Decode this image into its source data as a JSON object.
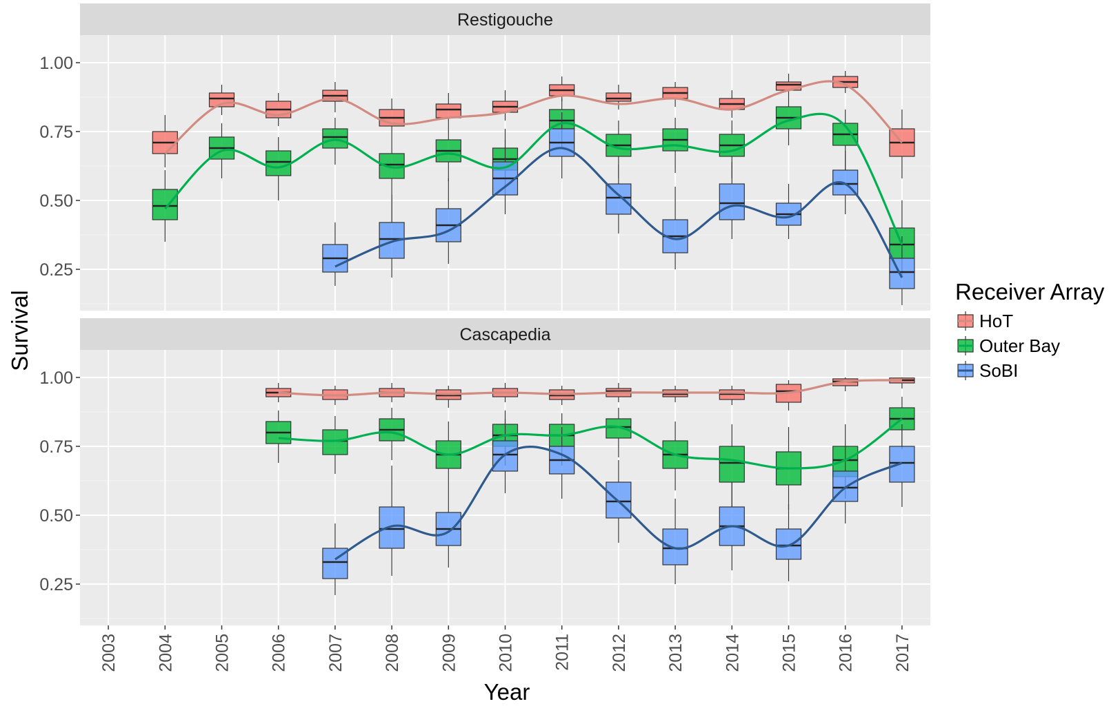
{
  "chart_data": {
    "type": "box",
    "xlabel": "Year",
    "ylabel": "Survival",
    "categories": [
      "2003",
      "2004",
      "2005",
      "2006",
      "2007",
      "2008",
      "2009",
      "2010",
      "2011",
      "2012",
      "2013",
      "2014",
      "2015",
      "2016",
      "2017"
    ],
    "ylim": [
      0.1,
      1.1
    ],
    "yticks": [
      0.25,
      0.5,
      0.75,
      1.0
    ],
    "ytick_labels": [
      "0.25",
      "0.50",
      "0.75",
      "1.00"
    ],
    "grid": true,
    "legend": {
      "title": "Receiver Array",
      "placement": "right",
      "entries": [
        "HoT",
        "Outer Bay",
        "SoBI"
      ]
    },
    "series_colors": {
      "HoT": {
        "fill": "#f8766d",
        "line": "#d28b80"
      },
      "Outer Bay": {
        "fill": "#00ba38",
        "line": "#00b050"
      },
      "SoBI": {
        "fill": "#619cff",
        "line": "#2f5a8e"
      }
    },
    "panels": [
      {
        "title": "Restigouche",
        "series": [
          {
            "name": "HoT",
            "boxes": [
              {
                "x": "2004",
                "q1": 0.67,
                "median": 0.71,
                "q3": 0.75,
                "lo": 0.62,
                "hi": 0.81
              },
              {
                "x": "2005",
                "q1": 0.84,
                "median": 0.87,
                "q3": 0.89,
                "lo": 0.81,
                "hi": 0.92
              },
              {
                "x": "2006",
                "q1": 0.8,
                "median": 0.83,
                "q3": 0.86,
                "lo": 0.77,
                "hi": 0.89
              },
              {
                "x": "2007",
                "q1": 0.86,
                "median": 0.88,
                "q3": 0.9,
                "lo": 0.82,
                "hi": 0.93
              },
              {
                "x": "2008",
                "q1": 0.77,
                "median": 0.8,
                "q3": 0.83,
                "lo": 0.73,
                "hi": 0.87
              },
              {
                "x": "2009",
                "q1": 0.8,
                "median": 0.83,
                "q3": 0.85,
                "lo": 0.77,
                "hi": 0.89
              },
              {
                "x": "2010",
                "q1": 0.82,
                "median": 0.84,
                "q3": 0.86,
                "lo": 0.79,
                "hi": 0.9
              },
              {
                "x": "2011",
                "q1": 0.88,
                "median": 0.9,
                "q3": 0.92,
                "lo": 0.86,
                "hi": 0.95
              },
              {
                "x": "2012",
                "q1": 0.86,
                "median": 0.87,
                "q3": 0.89,
                "lo": 0.83,
                "hi": 0.92
              },
              {
                "x": "2013",
                "q1": 0.87,
                "median": 0.89,
                "q3": 0.91,
                "lo": 0.84,
                "hi": 0.93
              },
              {
                "x": "2014",
                "q1": 0.83,
                "median": 0.85,
                "q3": 0.87,
                "lo": 0.8,
                "hi": 0.9
              },
              {
                "x": "2015",
                "q1": 0.9,
                "median": 0.92,
                "q3": 0.93,
                "lo": 0.88,
                "hi": 0.96
              },
              {
                "x": "2016",
                "q1": 0.91,
                "median": 0.93,
                "q3": 0.95,
                "lo": 0.89,
                "hi": 0.97
              },
              {
                "x": "2017",
                "q1": 0.66,
                "median": 0.71,
                "q3": 0.76,
                "lo": 0.58,
                "hi": 0.83
              }
            ],
            "smooth": [
              0.67,
              0.85,
              0.81,
              0.87,
              0.78,
              0.8,
              0.82,
              0.88,
              0.85,
              0.87,
              0.83,
              0.9,
              0.92,
              0.71
            ]
          },
          {
            "name": "Outer Bay",
            "boxes": [
              {
                "x": "2004",
                "q1": 0.43,
                "median": 0.48,
                "q3": 0.54,
                "lo": 0.35,
                "hi": 0.61
              },
              {
                "x": "2005",
                "q1": 0.65,
                "median": 0.69,
                "q3": 0.73,
                "lo": 0.58,
                "hi": 0.78
              },
              {
                "x": "2006",
                "q1": 0.59,
                "median": 0.64,
                "q3": 0.68,
                "lo": 0.5,
                "hi": 0.73
              },
              {
                "x": "2007",
                "q1": 0.69,
                "median": 0.73,
                "q3": 0.76,
                "lo": 0.63,
                "hi": 0.8
              },
              {
                "x": "2008",
                "q1": 0.58,
                "median": 0.63,
                "q3": 0.67,
                "lo": 0.42,
                "hi": 0.73
              },
              {
                "x": "2009",
                "q1": 0.64,
                "median": 0.68,
                "q3": 0.72,
                "lo": 0.57,
                "hi": 0.77
              },
              {
                "x": "2010",
                "q1": 0.61,
                "median": 0.65,
                "q3": 0.69,
                "lo": 0.52,
                "hi": 0.76
              },
              {
                "x": "2011",
                "q1": 0.76,
                "median": 0.79,
                "q3": 0.83,
                "lo": 0.69,
                "hi": 0.87
              },
              {
                "x": "2012",
                "q1": 0.66,
                "median": 0.7,
                "q3": 0.74,
                "lo": 0.58,
                "hi": 0.79
              },
              {
                "x": "2013",
                "q1": 0.68,
                "median": 0.72,
                "q3": 0.76,
                "lo": 0.6,
                "hi": 0.8
              },
              {
                "x": "2014",
                "q1": 0.66,
                "median": 0.7,
                "q3": 0.74,
                "lo": 0.58,
                "hi": 0.79
              },
              {
                "x": "2015",
                "q1": 0.76,
                "median": 0.8,
                "q3": 0.84,
                "lo": 0.7,
                "hi": 0.88
              },
              {
                "x": "2016",
                "q1": 0.7,
                "median": 0.74,
                "q3": 0.78,
                "lo": 0.61,
                "hi": 0.83
              },
              {
                "x": "2017",
                "q1": 0.29,
                "median": 0.34,
                "q3": 0.4,
                "lo": 0.22,
                "hi": 0.5
              }
            ],
            "smooth": [
              0.47,
              0.68,
              0.62,
              0.72,
              0.62,
              0.67,
              0.62,
              0.78,
              0.69,
              0.7,
              0.68,
              0.79,
              0.77,
              0.34
            ]
          },
          {
            "name": "SoBI",
            "boxes": [
              {
                "x": "2007",
                "q1": 0.24,
                "median": 0.29,
                "q3": 0.34,
                "lo": 0.19,
                "hi": 0.42
              },
              {
                "x": "2008",
                "q1": 0.29,
                "median": 0.36,
                "q3": 0.42,
                "lo": 0.22,
                "hi": 0.52
              },
              {
                "x": "2009",
                "q1": 0.35,
                "median": 0.41,
                "q3": 0.47,
                "lo": 0.27,
                "hi": 0.58
              },
              {
                "x": "2010",
                "q1": 0.52,
                "median": 0.58,
                "q3": 0.64,
                "lo": 0.45,
                "hi": 0.72
              },
              {
                "x": "2011",
                "q1": 0.66,
                "median": 0.71,
                "q3": 0.76,
                "lo": 0.58,
                "hi": 0.82
              },
              {
                "x": "2012",
                "q1": 0.45,
                "median": 0.51,
                "q3": 0.56,
                "lo": 0.38,
                "hi": 0.63
              },
              {
                "x": "2013",
                "q1": 0.31,
                "median": 0.37,
                "q3": 0.43,
                "lo": 0.25,
                "hi": 0.55
              },
              {
                "x": "2014",
                "q1": 0.43,
                "median": 0.49,
                "q3": 0.56,
                "lo": 0.36,
                "hi": 0.64
              },
              {
                "x": "2015",
                "q1": 0.41,
                "median": 0.45,
                "q3": 0.49,
                "lo": 0.36,
                "hi": 0.56
              },
              {
                "x": "2016",
                "q1": 0.52,
                "median": 0.56,
                "q3": 0.61,
                "lo": 0.45,
                "hi": 0.68
              },
              {
                "x": "2017",
                "q1": 0.18,
                "median": 0.24,
                "q3": 0.29,
                "lo": 0.12,
                "hi": 0.37
              }
            ],
            "smooth": [
              0.26,
              0.35,
              0.39,
              0.55,
              0.69,
              0.52,
              0.36,
              0.48,
              0.44,
              0.56,
              0.22
            ]
          }
        ]
      },
      {
        "title": "Cascapedia",
        "series": [
          {
            "name": "HoT",
            "boxes": [
              {
                "x": "2006",
                "q1": 0.93,
                "median": 0.945,
                "q3": 0.96,
                "lo": 0.91,
                "hi": 0.98
              },
              {
                "x": "2007",
                "q1": 0.92,
                "median": 0.935,
                "q3": 0.955,
                "lo": 0.9,
                "hi": 0.97
              },
              {
                "x": "2008",
                "q1": 0.93,
                "median": 0.945,
                "q3": 0.96,
                "lo": 0.91,
                "hi": 0.98
              },
              {
                "x": "2009",
                "q1": 0.92,
                "median": 0.935,
                "q3": 0.955,
                "lo": 0.89,
                "hi": 0.97
              },
              {
                "x": "2010",
                "q1": 0.93,
                "median": 0.945,
                "q3": 0.96,
                "lo": 0.91,
                "hi": 0.98
              },
              {
                "x": "2011",
                "q1": 0.92,
                "median": 0.935,
                "q3": 0.955,
                "lo": 0.9,
                "hi": 0.97
              },
              {
                "x": "2012",
                "q1": 0.93,
                "median": 0.95,
                "q3": 0.96,
                "lo": 0.91,
                "hi": 0.98
              },
              {
                "x": "2013",
                "q1": 0.93,
                "median": 0.94,
                "q3": 0.955,
                "lo": 0.91,
                "hi": 0.97
              },
              {
                "x": "2014",
                "q1": 0.92,
                "median": 0.94,
                "q3": 0.955,
                "lo": 0.9,
                "hi": 0.97
              },
              {
                "x": "2015",
                "q1": 0.91,
                "median": 0.95,
                "q3": 0.975,
                "lo": 0.88,
                "hi": 0.99
              },
              {
                "x": "2016",
                "q1": 0.97,
                "median": 0.985,
                "q3": 0.995,
                "lo": 0.95,
                "hi": 1.0
              },
              {
                "x": "2017",
                "q1": 0.98,
                "median": 0.99,
                "q3": 0.998,
                "lo": 0.96,
                "hi": 1.0
              }
            ],
            "smooth": [
              0.945,
              0.935,
              0.945,
              0.94,
              0.945,
              0.94,
              0.945,
              0.945,
              0.945,
              0.945,
              0.985,
              0.99
            ]
          },
          {
            "name": "Outer Bay",
            "boxes": [
              {
                "x": "2006",
                "q1": 0.76,
                "median": 0.8,
                "q3": 0.84,
                "lo": 0.69,
                "hi": 0.88
              },
              {
                "x": "2007",
                "q1": 0.72,
                "median": 0.77,
                "q3": 0.81,
                "lo": 0.65,
                "hi": 0.86
              },
              {
                "x": "2008",
                "q1": 0.77,
                "median": 0.81,
                "q3": 0.85,
                "lo": 0.7,
                "hi": 0.89
              },
              {
                "x": "2009",
                "q1": 0.67,
                "median": 0.72,
                "q3": 0.77,
                "lo": 0.6,
                "hi": 0.84
              },
              {
                "x": "2010",
                "q1": 0.75,
                "median": 0.79,
                "q3": 0.83,
                "lo": 0.68,
                "hi": 0.88
              },
              {
                "x": "2011",
                "q1": 0.75,
                "median": 0.79,
                "q3": 0.83,
                "lo": 0.68,
                "hi": 0.87
              },
              {
                "x": "2012",
                "q1": 0.78,
                "median": 0.82,
                "q3": 0.85,
                "lo": 0.71,
                "hi": 0.89
              },
              {
                "x": "2013",
                "q1": 0.67,
                "median": 0.72,
                "q3": 0.77,
                "lo": 0.59,
                "hi": 0.84
              },
              {
                "x": "2014",
                "q1": 0.62,
                "median": 0.69,
                "q3": 0.75,
                "lo": 0.53,
                "hi": 0.83
              },
              {
                "x": "2015",
                "q1": 0.61,
                "median": 0.67,
                "q3": 0.73,
                "lo": 0.52,
                "hi": 0.82
              },
              {
                "x": "2016",
                "q1": 0.64,
                "median": 0.7,
                "q3": 0.75,
                "lo": 0.56,
                "hi": 0.83
              },
              {
                "x": "2017",
                "q1": 0.81,
                "median": 0.85,
                "q3": 0.89,
                "lo": 0.74,
                "hi": 0.93
              }
            ],
            "smooth": [
              0.78,
              0.77,
              0.8,
              0.72,
              0.79,
              0.79,
              0.82,
              0.72,
              0.7,
              0.67,
              0.7,
              0.85
            ]
          },
          {
            "name": "SoBI",
            "boxes": [
              {
                "x": "2007",
                "q1": 0.27,
                "median": 0.33,
                "q3": 0.38,
                "lo": 0.21,
                "hi": 0.47
              },
              {
                "x": "2008",
                "q1": 0.38,
                "median": 0.45,
                "q3": 0.53,
                "lo": 0.28,
                "hi": 0.68
              },
              {
                "x": "2009",
                "q1": 0.39,
                "median": 0.45,
                "q3": 0.51,
                "lo": 0.31,
                "hi": 0.6
              },
              {
                "x": "2010",
                "q1": 0.66,
                "median": 0.72,
                "q3": 0.77,
                "lo": 0.58,
                "hi": 0.85
              },
              {
                "x": "2011",
                "q1": 0.65,
                "median": 0.7,
                "q3": 0.75,
                "lo": 0.56,
                "hi": 0.82
              },
              {
                "x": "2012",
                "q1": 0.49,
                "median": 0.55,
                "q3": 0.62,
                "lo": 0.4,
                "hi": 0.7
              },
              {
                "x": "2013",
                "q1": 0.32,
                "median": 0.38,
                "q3": 0.45,
                "lo": 0.25,
                "hi": 0.56
              },
              {
                "x": "2014",
                "q1": 0.39,
                "median": 0.46,
                "q3": 0.53,
                "lo": 0.3,
                "hi": 0.62
              },
              {
                "x": "2015",
                "q1": 0.34,
                "median": 0.39,
                "q3": 0.45,
                "lo": 0.26,
                "hi": 0.54
              },
              {
                "x": "2016",
                "q1": 0.55,
                "median": 0.6,
                "q3": 0.66,
                "lo": 0.47,
                "hi": 0.75
              },
              {
                "x": "2017",
                "q1": 0.62,
                "median": 0.69,
                "q3": 0.75,
                "lo": 0.53,
                "hi": 0.83
              }
            ],
            "smooth": [
              0.34,
              0.46,
              0.44,
              0.72,
              0.72,
              0.55,
              0.38,
              0.46,
              0.39,
              0.6,
              0.69
            ]
          }
        ]
      }
    ]
  }
}
